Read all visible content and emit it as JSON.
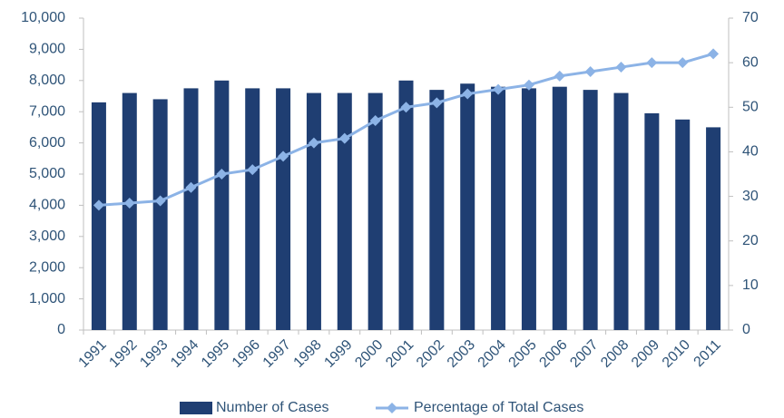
{
  "chart_data": {
    "type": "bar-line",
    "categories": [
      "1991",
      "1992",
      "1993",
      "1994",
      "1995",
      "1996",
      "1997",
      "1998",
      "1999",
      "2000",
      "2001",
      "2002",
      "2003",
      "2004",
      "2005",
      "2006",
      "2007",
      "2008",
      "2009",
      "2010",
      "2011"
    ],
    "series": [
      {
        "name": "Number of Cases",
        "type": "bar",
        "color": "#1f3e72",
        "values": [
          7300,
          7600,
          7400,
          7750,
          8000,
          7750,
          7750,
          7600,
          7600,
          7600,
          8000,
          7700,
          7900,
          7800,
          7750,
          7800,
          7700,
          7600,
          6950,
          6750,
          6500
        ]
      },
      {
        "name": "Percentage of Total Cases",
        "type": "line",
        "axis": "y2",
        "color": "#8cb3e6",
        "values": [
          28,
          28.5,
          29,
          32,
          35,
          36,
          39,
          42,
          43,
          47,
          50,
          51,
          53,
          54,
          55,
          57,
          58,
          59,
          60,
          60,
          62
        ]
      }
    ],
    "ylim": [
      0,
      10000
    ],
    "yticks": [
      0,
      {
        "value": 1000,
        "label": "1,000"
      },
      {
        "value": 2000,
        "label": "2,000"
      },
      {
        "value": 3000,
        "label": "3,000"
      },
      {
        "value": 4000,
        "label": "4,000"
      },
      {
        "value": 5000,
        "label": "5,000"
      },
      {
        "value": 6000,
        "label": "6,000"
      },
      {
        "value": 7000,
        "label": "7,000"
      },
      {
        "value": 8000,
        "label": "8,000"
      },
      {
        "value": 9000,
        "label": "9,000"
      },
      {
        "value": 10000,
        "label": "10,000"
      }
    ],
    "y2lim": [
      0,
      70
    ],
    "y2ticks": [
      0,
      10,
      20,
      30,
      40,
      50,
      60,
      70
    ],
    "grid": false,
    "legend": "bottom"
  }
}
